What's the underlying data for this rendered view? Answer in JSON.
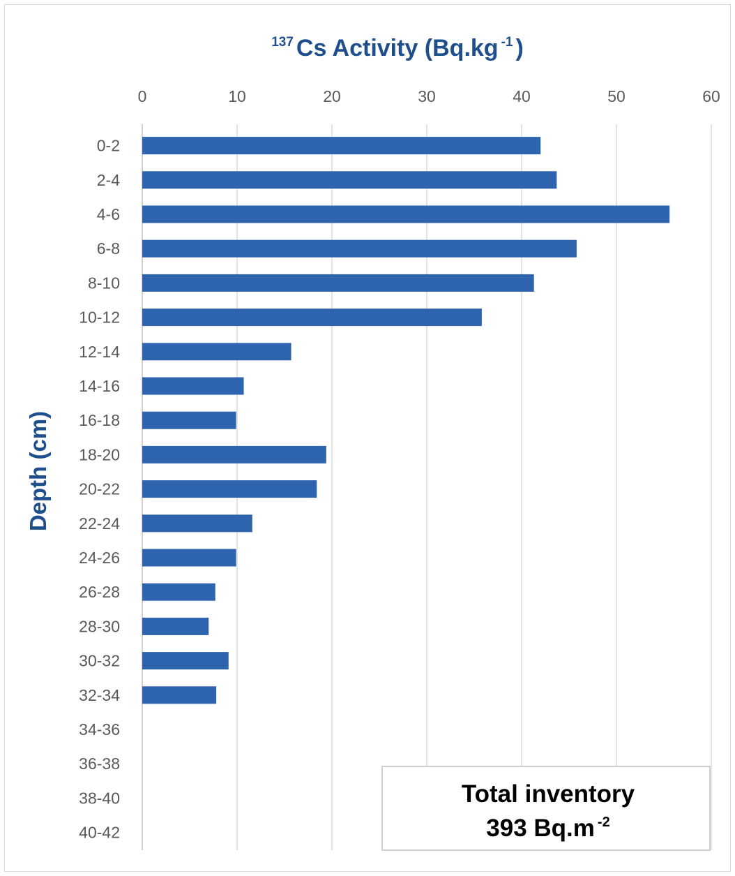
{
  "chart_data": {
    "type": "bar",
    "orientation": "horizontal",
    "title": {
      "superscript": "137",
      "main": "Cs Activity (Bq.kg",
      "unit_superscript": "-1",
      "close": ")"
    },
    "xlabel": "",
    "ylabel": "Depth (cm)",
    "xlim": [
      0,
      60
    ],
    "x_ticks": [
      0,
      10,
      20,
      30,
      40,
      50,
      60
    ],
    "x_axis_position": "top",
    "grid": "vertical",
    "categories": [
      "0-2",
      "2-4",
      "4-6",
      "6-8",
      "8-10",
      "10-12",
      "12-14",
      "14-16",
      "16-18",
      "18-20",
      "20-22",
      "22-24",
      "24-26",
      "26-28",
      "28-30",
      "30-32",
      "32-34",
      "34-36",
      "36-38",
      "38-40",
      "40-42"
    ],
    "values": [
      42,
      43.7,
      55.6,
      45.8,
      41.3,
      35.8,
      15.7,
      10.7,
      9.9,
      19.4,
      18.4,
      11.6,
      9.9,
      7.7,
      7.0,
      9.1,
      7.8,
      0,
      0,
      0,
      0
    ],
    "bar_color": "#2e63ad",
    "annotation": {
      "line1": "Total inventory",
      "line2_main": "393 Bq.m",
      "line2_superscript": "-2",
      "placement": "bottom-right"
    }
  }
}
